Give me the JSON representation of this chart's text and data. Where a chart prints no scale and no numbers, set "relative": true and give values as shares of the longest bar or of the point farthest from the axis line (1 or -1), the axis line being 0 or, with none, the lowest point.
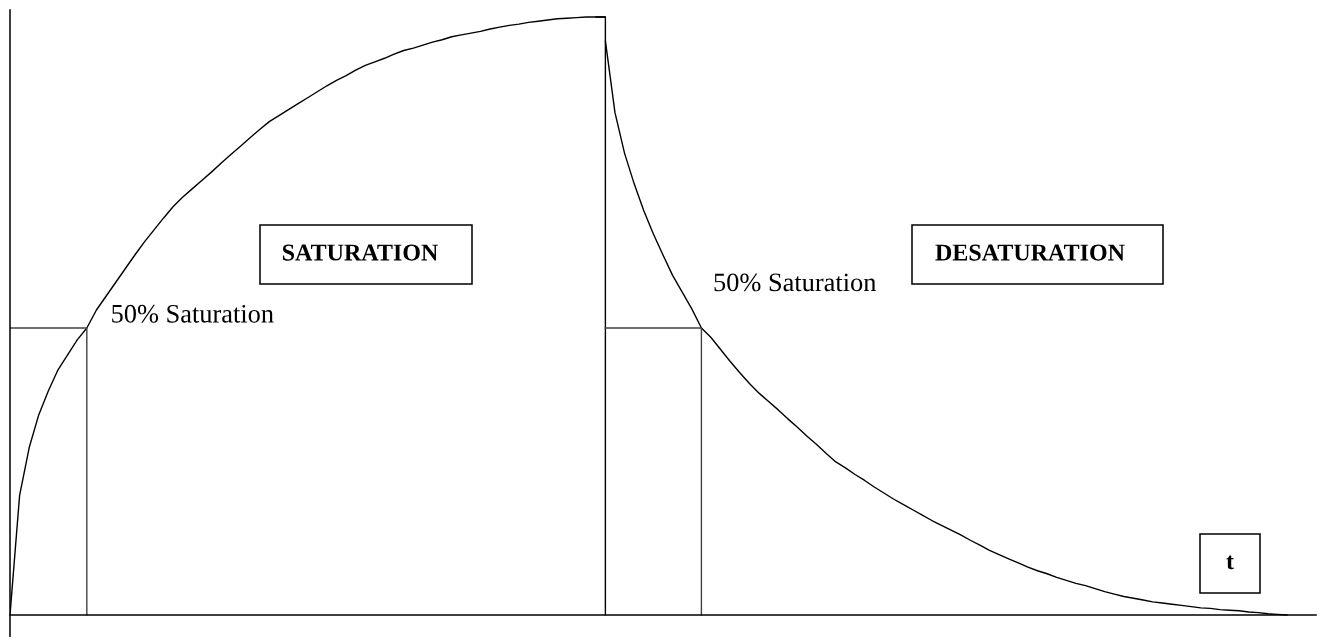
{
  "chart_data": {
    "type": "line",
    "relative": true,
    "xlabel": "t",
    "annotations": [
      "SATURATION",
      "50% Saturation",
      "DESATURATION",
      "50% Saturation"
    ],
    "categories": [
      null,
      null,
      null,
      null,
      null,
      null,
      null,
      null,
      null,
      null,
      null,
      null,
      null,
      null,
      null,
      null,
      null,
      null,
      null,
      null,
      null,
      null,
      null,
      null,
      null,
      null,
      null,
      null,
      null,
      null,
      null,
      null,
      null,
      null,
      null,
      null,
      null,
      null,
      null,
      null,
      null,
      null,
      null,
      null,
      null,
      null,
      null,
      null,
      null,
      null,
      null,
      null,
      null,
      null,
      null,
      null,
      null,
      null,
      null,
      null,
      null,
      null,
      null,
      null,
      null,
      null,
      null,
      null,
      null,
      null,
      null,
      null,
      null,
      null,
      null,
      null,
      null,
      null,
      null,
      null,
      null,
      null,
      null,
      null,
      null,
      null,
      null,
      null,
      null,
      null,
      null,
      null,
      null,
      null,
      null,
      null,
      null,
      null,
      null,
      null,
      null,
      null,
      null,
      null,
      null,
      null,
      null,
      null,
      null,
      null,
      null,
      null,
      null,
      null,
      null,
      null,
      null,
      null,
      null,
      null,
      null,
      null,
      null,
      null,
      null,
      null,
      null,
      null,
      null,
      null,
      null,
      null,
      null,
      null,
      null,
      null,
      null
    ],
    "series": [
      {
        "color": "#000000",
        "values": [
          0,
          0.2,
          0.28,
          0.335,
          0.375,
          0.41,
          0.435,
          0.46,
          0.48,
          0.51,
          0.533,
          0.556,
          0.579,
          0.602,
          0.624,
          0.644,
          0.664,
          0.683,
          0.699,
          0.713,
          0.727,
          0.741,
          0.756,
          0.77,
          0.784,
          0.798,
          0.812,
          0.825,
          0.835,
          0.845,
          0.855,
          0.865,
          0.875,
          0.885,
          0.894,
          0.902,
          0.911,
          0.919,
          0.925,
          0.931,
          0.938,
          0.944,
          0.948,
          0.953,
          0.958,
          0.962,
          0.967,
          0.97,
          0.973,
          0.976,
          0.98,
          0.983,
          0.986,
          0.988,
          0.991,
          0.993,
          0.995,
          0.997,
          0.998,
          0.999,
          1,
          1,
          1,
          null,
          null,
          null,
          null,
          null,
          null,
          null,
          null,
          null,
          null,
          null,
          null,
          null,
          null,
          null,
          null,
          null,
          null,
          null,
          null,
          null,
          null,
          null,
          null,
          null,
          null,
          null,
          null,
          null,
          null,
          null,
          null,
          null,
          null,
          null,
          null,
          null,
          null,
          null,
          null,
          null,
          null,
          null,
          null,
          null,
          null,
          null,
          null,
          null,
          null,
          null,
          null,
          null,
          null,
          null,
          null,
          null,
          null,
          null,
          null,
          null,
          null,
          null,
          null,
          null,
          null,
          null,
          null,
          null,
          null,
          null,
          null,
          null,
          null
        ]
      },
      {
        "color": "#000000",
        "values": [
          null,
          null,
          null,
          null,
          null,
          null,
          null,
          null,
          null,
          null,
          null,
          null,
          null,
          null,
          null,
          null,
          null,
          null,
          null,
          null,
          null,
          null,
          null,
          null,
          null,
          null,
          null,
          null,
          null,
          null,
          null,
          null,
          null,
          null,
          null,
          null,
          null,
          null,
          null,
          null,
          null,
          null,
          null,
          null,
          null,
          null,
          null,
          null,
          null,
          null,
          null,
          null,
          null,
          null,
          null,
          null,
          null,
          null,
          null,
          null,
          null,
          null,
          0.96,
          0.84,
          0.772,
          0.721,
          0.676,
          0.637,
          0.602,
          0.568,
          0.54,
          0.512,
          0.48,
          0.464,
          0.444,
          0.424,
          0.405,
          0.387,
          0.371,
          0.357,
          0.343,
          0.328,
          0.314,
          0.299,
          0.285,
          0.27,
          0.256,
          0.246,
          0.235,
          0.225,
          0.214,
          0.204,
          0.194,
          0.185,
          0.176,
          0.167,
          0.158,
          0.15,
          0.142,
          0.134,
          0.125,
          0.117,
          0.108,
          0.101,
          0.094,
          0.087,
          0.08,
          0.074,
          0.069,
          0.063,
          0.058,
          0.053,
          0.049,
          0.044,
          0.039,
          0.035,
          0.031,
          0.028,
          0.025,
          0.022,
          0.02,
          0.018,
          0.016,
          0.014,
          0.012,
          0.011,
          0.009,
          0.008,
          0.007,
          0.005,
          0.004,
          0.002,
          0.001,
          0,
          null,
          null,
          null
        ]
      },
      {
        "type": "step",
        "color": "#404040",
        "values": [
          0.48,
          0.48,
          0.48,
          0.48,
          0.48,
          0.48,
          0.48,
          0.48,
          0,
          null,
          null,
          null,
          null,
          null,
          null,
          null,
          null,
          null,
          null,
          null,
          null,
          null,
          null,
          null,
          null,
          null,
          null,
          null,
          null,
          null,
          null,
          null,
          null,
          null,
          null,
          null,
          null,
          null,
          null,
          null,
          null,
          null,
          null,
          null,
          null,
          null,
          null,
          null,
          null,
          null,
          null,
          null,
          null,
          null,
          null,
          null,
          null,
          null,
          null,
          null,
          null,
          null,
          null,
          null,
          null,
          null,
          null,
          null,
          null,
          null,
          null,
          null,
          null,
          null,
          null,
          null,
          null,
          null,
          null,
          null,
          null,
          null,
          null,
          null,
          null,
          null,
          null,
          null,
          null,
          null,
          null,
          null,
          null,
          null,
          null,
          null,
          null,
          null,
          null,
          null,
          null,
          null,
          null,
          null,
          null,
          null,
          null,
          null,
          null,
          null,
          null,
          null,
          null,
          null,
          null,
          null,
          null,
          null,
          null,
          null,
          null,
          null,
          null,
          null,
          null,
          null,
          null,
          null,
          null,
          null,
          null,
          null,
          null,
          null,
          null,
          null,
          null
        ]
      },
      {
        "type": "step",
        "color": "#000000",
        "values": [
          null,
          null,
          null,
          null,
          null,
          null,
          null,
          null,
          null,
          null,
          null,
          null,
          null,
          null,
          null,
          null,
          null,
          null,
          null,
          null,
          null,
          null,
          null,
          null,
          null,
          null,
          null,
          null,
          null,
          null,
          null,
          null,
          null,
          null,
          null,
          null,
          null,
          null,
          null,
          null,
          null,
          null,
          null,
          null,
          null,
          null,
          null,
          null,
          null,
          null,
          null,
          null,
          null,
          null,
          null,
          null,
          null,
          null,
          null,
          null,
          null,
          1,
          0,
          null,
          null,
          null,
          null,
          null,
          null,
          null,
          null,
          null,
          null,
          null,
          null,
          null,
          null,
          null,
          null,
          null,
          null,
          null,
          null,
          null,
          null,
          null,
          null,
          null,
          null,
          null,
          null,
          null,
          null,
          null,
          null,
          null,
          null,
          null,
          null,
          null,
          null,
          null,
          null,
          null,
          null,
          null,
          null,
          null,
          null,
          null,
          null,
          null,
          null,
          null,
          null,
          null,
          null,
          null,
          null,
          null,
          null,
          null,
          null,
          null,
          null,
          null,
          null,
          null,
          null,
          null,
          null,
          null,
          null,
          null,
          null,
          null,
          null
        ]
      },
      {
        "type": "step",
        "color": "#404040",
        "values": [
          null,
          null,
          null,
          null,
          null,
          null,
          null,
          null,
          null,
          null,
          null,
          null,
          null,
          null,
          null,
          null,
          null,
          null,
          null,
          null,
          null,
          null,
          null,
          null,
          null,
          null,
          null,
          null,
          null,
          null,
          null,
          null,
          null,
          null,
          null,
          null,
          null,
          null,
          null,
          null,
          null,
          null,
          null,
          null,
          null,
          null,
          null,
          null,
          null,
          null,
          null,
          null,
          null,
          null,
          null,
          null,
          null,
          null,
          null,
          null,
          null,
          null,
          0.48,
          0.48,
          0.48,
          0.48,
          0.48,
          0.48,
          0.48,
          0.48,
          0.48,
          0.48,
          0,
          null,
          null,
          null,
          null,
          null,
          null,
          null,
          null,
          null,
          null,
          null,
          null,
          null,
          null,
          null,
          null,
          null,
          null,
          null,
          null,
          null,
          null,
          null,
          null,
          null,
          null,
          null,
          null,
          null,
          null,
          null,
          null,
          null,
          null,
          null,
          null,
          null,
          null,
          null,
          null,
          null,
          null,
          null,
          null,
          null,
          null,
          null,
          null,
          null,
          null,
          null,
          null,
          null,
          null,
          null,
          null,
          null,
          null,
          null,
          null,
          null,
          null,
          null,
          null
        ]
      }
    ]
  }
}
